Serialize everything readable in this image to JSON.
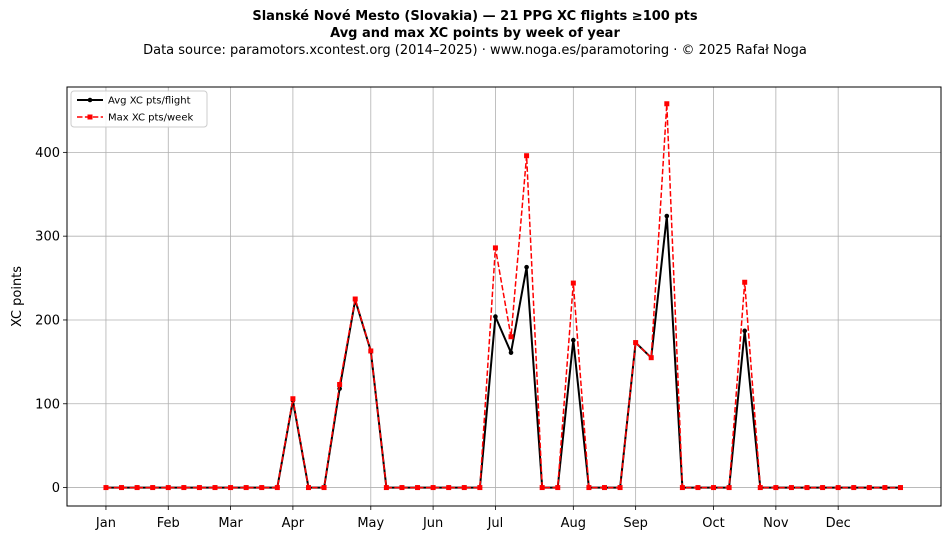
{
  "header": {
    "title": "Slanské Nové Mesto (Slovakia)  —  21 PPG XC flights ≥100 pts",
    "subtitle": "Avg and max XC points by week of year",
    "source": "Data source: paramotors.xcontest.org (2014–2025)  ·  www.noga.es/paramotoring  ·  © 2025 Rafał Noga"
  },
  "chart_data": {
    "type": "line",
    "title": "Slanské Nové Mesto (Slovakia)  —  21 PPG XC flights ≥100 pts",
    "subtitle": "Avg and max XC points by week of year",
    "xlabel": "",
    "ylabel": "XC points",
    "x": [
      1,
      2,
      3,
      4,
      5,
      6,
      7,
      8,
      9,
      10,
      11,
      12,
      13,
      14,
      15,
      16,
      17,
      18,
      19,
      20,
      21,
      22,
      23,
      24,
      25,
      26,
      27,
      28,
      29,
      30,
      31,
      32,
      33,
      34,
      35,
      36,
      37,
      38,
      39,
      40,
      41,
      42,
      43,
      44,
      45,
      46,
      47,
      48,
      49,
      50,
      51,
      52
    ],
    "x_range": [
      -1.5,
      54.6
    ],
    "ylim": [
      -22,
      478
    ],
    "yticks": [
      0,
      100,
      200,
      300,
      400
    ],
    "xticks": [
      {
        "week": 1,
        "label": "Jan"
      },
      {
        "week": 5,
        "label": "Feb"
      },
      {
        "week": 9,
        "label": "Mar"
      },
      {
        "week": 13,
        "label": "Apr"
      },
      {
        "week": 18,
        "label": "May"
      },
      {
        "week": 22,
        "label": "Jun"
      },
      {
        "week": 26,
        "label": "Jul"
      },
      {
        "week": 31,
        "label": "Aug"
      },
      {
        "week": 35,
        "label": "Sep"
      },
      {
        "week": 40,
        "label": "Oct"
      },
      {
        "week": 44,
        "label": "Nov"
      },
      {
        "week": 48,
        "label": "Dec"
      }
    ],
    "grid": true,
    "legend_position": "top-left",
    "series": [
      {
        "name": "Avg XC pts/flight",
        "color": "#000000",
        "style": "solid-dot",
        "values": [
          0,
          0,
          0,
          0,
          0,
          0,
          0,
          0,
          0,
          0,
          0,
          0,
          104,
          0,
          0,
          118,
          224,
          163,
          0,
          0,
          0,
          0,
          0,
          0,
          0,
          204,
          161,
          263,
          0,
          0,
          176,
          0,
          0,
          0,
          173,
          155,
          324,
          0,
          0,
          0,
          0,
          187,
          0,
          0,
          0,
          0,
          0,
          0,
          0,
          0,
          0,
          0
        ]
      },
      {
        "name": "Max XC pts/week",
        "color": "#ff0000",
        "style": "dashed-square",
        "values": [
          0,
          0,
          0,
          0,
          0,
          0,
          0,
          0,
          0,
          0,
          0,
          0,
          106,
          0,
          0,
          123,
          225,
          163,
          0,
          0,
          0,
          0,
          0,
          0,
          0,
          286,
          180,
          396,
          0,
          0,
          244,
          0,
          0,
          0,
          173,
          155,
          458,
          0,
          0,
          0,
          0,
          245,
          0,
          0,
          0,
          0,
          0,
          0,
          0,
          0,
          0,
          0
        ]
      }
    ]
  }
}
